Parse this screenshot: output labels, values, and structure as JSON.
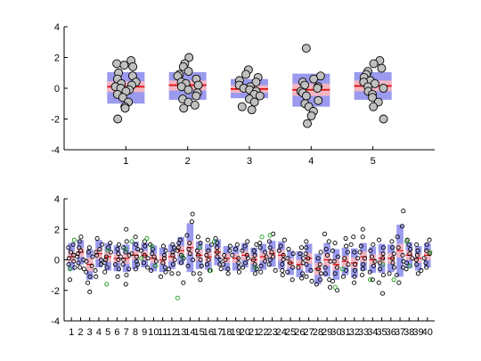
{
  "chart_data": [
    {
      "type": "scatter",
      "subtype": "notBoxPlot",
      "categories": [
        "1",
        "2",
        "3",
        "4",
        "5"
      ],
      "ylim": [
        -4,
        4
      ],
      "yticks": [
        "-4",
        "-2",
        "0",
        "2",
        "4"
      ],
      "grid": false,
      "groups": [
        {
          "x": "1",
          "mean": 0.1,
          "sem_low": -0.25,
          "sem_high": 0.45,
          "sd_low": -1.0,
          "sd_high": 1.05,
          "points": [
            1.8,
            1.6,
            1.5,
            1.4,
            1.0,
            0.8,
            0.6,
            0.4,
            0.3,
            0.2,
            0.1,
            0.0,
            -0.1,
            -0.2,
            -0.4,
            -0.6,
            -0.9,
            -1.2,
            -1.3,
            -2.0
          ]
        },
        {
          "x": "2",
          "mean": 0.2,
          "sem_low": -0.15,
          "sem_high": 0.5,
          "sd_low": -0.75,
          "sd_high": 1.05,
          "points": [
            2.0,
            1.6,
            1.4,
            1.1,
            0.9,
            0.8,
            0.6,
            0.4,
            0.3,
            0.2,
            0.1,
            -0.1,
            -0.3,
            -0.5,
            -0.7,
            -0.9,
            -1.1,
            -1.3
          ]
        },
        {
          "x": "3",
          "mean": -0.05,
          "sem_low": -0.3,
          "sem_high": 0.2,
          "sd_low": -0.65,
          "sd_high": 0.6,
          "points": [
            1.2,
            0.9,
            0.7,
            0.5,
            0.4,
            0.2,
            0.1,
            0.0,
            -0.1,
            -0.2,
            -0.4,
            -0.5,
            -0.7,
            -0.9,
            -1.2,
            -1.4
          ]
        },
        {
          "x": "4",
          "mean": -0.1,
          "sem_low": -0.5,
          "sem_high": 0.3,
          "sd_low": -1.2,
          "sd_high": 0.95,
          "points": [
            2.6,
            0.8,
            0.6,
            0.4,
            0.2,
            0.1,
            0.0,
            -0.2,
            -0.3,
            -0.5,
            -0.8,
            -1.0,
            -1.2,
            -1.5,
            -1.8,
            -2.3
          ]
        },
        {
          "x": "5",
          "mean": 0.15,
          "sem_low": -0.2,
          "sem_high": 0.5,
          "sd_low": -0.75,
          "sd_high": 1.05,
          "points": [
            1.8,
            1.6,
            1.3,
            1.1,
            0.9,
            0.7,
            0.5,
            0.4,
            0.3,
            0.1,
            0.0,
            -0.2,
            -0.4,
            -0.6,
            -0.9,
            -1.2,
            -2.0
          ]
        }
      ]
    },
    {
      "type": "scatter",
      "subtype": "notBoxPlot",
      "categories": [
        "1",
        "2",
        "3",
        "4",
        "5",
        "6",
        "7",
        "8",
        "9",
        "10",
        "11",
        "12",
        "13",
        "14",
        "15",
        "16",
        "17",
        "18",
        "19",
        "20",
        "21",
        "22",
        "23",
        "24",
        "25",
        "26",
        "27",
        "28",
        "29",
        "30",
        "31",
        "32",
        "33",
        "34",
        "35",
        "36",
        "37",
        "38",
        "39",
        "40"
      ],
      "ylim": [
        -4,
        4
      ],
      "yticks": [
        "-4",
        "-2",
        "0",
        "2",
        "4"
      ],
      "grid": false,
      "point_colors": {
        "normal": "#000000",
        "outlier": "#1a9a1a"
      },
      "groups": [
        {
          "x": "1",
          "mean": 0.2,
          "sem": 0.35,
          "sd": 0.9,
          "points": [
            1.0,
            0.8,
            0.5,
            0.3,
            0.1,
            -0.1,
            -0.3,
            -0.5,
            -1.3
          ],
          "outliers": [
            1.3,
            -0.6
          ]
        },
        {
          "x": "2",
          "mean": 0.5,
          "sem": 0.3,
          "sd": 0.8,
          "points": [
            1.5,
            1.2,
            0.8,
            0.6,
            0.4,
            0.2,
            0.0,
            -0.2,
            -0.5,
            -0.6
          ],
          "outliers": []
        },
        {
          "x": "3",
          "mean": -0.3,
          "sem": 0.45,
          "sd": 1.0,
          "points": [
            0.8,
            0.5,
            0.2,
            -0.1,
            -0.4,
            -0.8,
            -1.1,
            -1.5,
            -2.1
          ],
          "outliers": []
        },
        {
          "x": "4",
          "mean": 0.4,
          "sem": 0.35,
          "sd": 0.9,
          "points": [
            1.4,
            1.0,
            0.7,
            0.5,
            0.3,
            0.0,
            -0.3,
            -0.7,
            -1.1
          ],
          "outliers": []
        },
        {
          "x": "5",
          "mean": 0.2,
          "sem": 0.35,
          "sd": 0.9,
          "points": [
            1.1,
            0.8,
            0.5,
            0.2,
            0.0,
            -0.2,
            -0.5,
            -0.8
          ],
          "outliers": [
            0.6,
            -1.6
          ]
        },
        {
          "x": "6",
          "mean": 0.1,
          "sem": 0.3,
          "sd": 0.85,
          "points": [
            1.0,
            0.7,
            0.4,
            0.2,
            0.0,
            -0.3,
            -0.6,
            -1.1
          ],
          "outliers": []
        },
        {
          "x": "7",
          "mean": 0.1,
          "sem": 0.35,
          "sd": 0.9,
          "points": [
            2.0,
            1.2,
            0.8,
            0.5,
            0.3,
            0.0,
            -0.3,
            -0.6,
            -1.0,
            -1.6
          ],
          "outliers": [
            0.7
          ]
        },
        {
          "x": "8",
          "mean": 0.3,
          "sem": 0.3,
          "sd": 0.9,
          "points": [
            1.5,
            1.0,
            0.7,
            0.4,
            0.2,
            -0.1,
            -0.3,
            -0.6
          ],
          "outliers": [
            1.2
          ]
        },
        {
          "x": "9",
          "mean": 0.3,
          "sem": 0.3,
          "sd": 0.8,
          "points": [
            1.2,
            0.9,
            0.6,
            0.3,
            0.1,
            -0.2,
            -0.5
          ],
          "outliers": [
            1.4,
            0.1
          ]
        },
        {
          "x": "10",
          "mean": 0.1,
          "sem": 0.3,
          "sd": 0.85,
          "points": [
            1.0,
            0.7,
            0.4,
            0.2,
            -0.1,
            -0.4,
            -0.7
          ],
          "outliers": [
            0.9,
            -0.4
          ]
        },
        {
          "x": "11",
          "mean": 0.0,
          "sem": 0.3,
          "sd": 0.8,
          "points": [
            0.9,
            0.6,
            0.3,
            0.1,
            -0.2,
            -0.5,
            -0.8,
            -1.1
          ],
          "outliers": []
        },
        {
          "x": "12",
          "mean": 0.2,
          "sem": 0.3,
          "sd": 0.8,
          "points": [
            1.0,
            0.8,
            0.5,
            0.3,
            0.0,
            -0.3,
            -0.6,
            -0.9
          ],
          "outliers": []
        },
        {
          "x": "13",
          "mean": 0.6,
          "sem": 0.3,
          "sd": 0.9,
          "points": [
            1.3,
            1.1,
            0.8,
            0.6,
            0.3,
            0.1,
            -0.2,
            -0.9,
            -1.5
          ],
          "outliers": [
            0.2,
            -2.5
          ]
        },
        {
          "x": "14",
          "mean": 0.8,
          "sem": 0.45,
          "sd": 1.6,
          "points": [
            3.0,
            2.5,
            1.6,
            1.1,
            0.7,
            0.4,
            0.0,
            -0.4,
            -0.9
          ],
          "outliers": []
        },
        {
          "x": "15",
          "mean": 0.3,
          "sem": 0.35,
          "sd": 0.9,
          "points": [
            1.5,
            1.1,
            0.6,
            0.3,
            0.0,
            -0.4,
            -0.9,
            -1.3
          ],
          "outliers": [
            0.8
          ]
        },
        {
          "x": "16",
          "mean": 0.2,
          "sem": 0.35,
          "sd": 0.85,
          "points": [
            1.3,
            1.0,
            0.6,
            0.3,
            0.0,
            -0.3,
            -0.7
          ],
          "outliers": [
            -0.7
          ]
        },
        {
          "x": "17",
          "mean": 0.5,
          "sem": 0.3,
          "sd": 0.85,
          "points": [
            1.4,
            1.1,
            0.8,
            0.5,
            0.2,
            0.0,
            -0.3,
            -0.6
          ],
          "outliers": [
            1.2
          ]
        },
        {
          "x": "18",
          "mean": 0.1,
          "sem": 0.3,
          "sd": 0.8,
          "points": [
            0.9,
            0.6,
            0.3,
            0.0,
            -0.3,
            -0.6,
            -0.9
          ],
          "outliers": []
        },
        {
          "x": "19",
          "mean": 0.1,
          "sem": 0.3,
          "sd": 0.8,
          "points": [
            1.0,
            0.7,
            0.3,
            0.1,
            -0.2,
            -0.5,
            -0.8
          ],
          "outliers": []
        },
        {
          "x": "20",
          "mean": 0.3,
          "sem": 0.3,
          "sd": 0.8,
          "points": [
            1.2,
            0.9,
            0.6,
            0.3,
            0.1,
            -0.2,
            -0.5
          ],
          "outliers": []
        },
        {
          "x": "21",
          "mean": 0.0,
          "sem": 0.3,
          "sd": 0.8,
          "points": [
            1.0,
            0.6,
            0.3,
            0.0,
            -0.3,
            -0.6,
            -0.9
          ],
          "outliers": [
            -0.5
          ]
        },
        {
          "x": "22",
          "mean": 0.2,
          "sem": 0.3,
          "sd": 0.85,
          "points": [
            1.1,
            0.8,
            0.5,
            0.2,
            -0.1,
            -0.4,
            -0.8
          ],
          "outliers": [
            1.5
          ]
        },
        {
          "x": "23",
          "mean": 0.4,
          "sem": 0.3,
          "sd": 0.85,
          "points": [
            1.7,
            1.2,
            0.8,
            0.5,
            0.2,
            0.0,
            -0.3,
            -0.7
          ],
          "outliers": [
            1.6
          ]
        },
        {
          "x": "24",
          "mean": 0.3,
          "sem": 0.35,
          "sd": 0.9,
          "points": [
            1.3,
            0.9,
            0.6,
            0.3,
            0.0,
            -0.3,
            -0.7,
            -1.0
          ],
          "outliers": []
        },
        {
          "x": "25",
          "mean": -0.2,
          "sem": 0.3,
          "sd": 0.8,
          "points": [
            0.7,
            0.4,
            0.1,
            -0.2,
            -0.5,
            -0.8,
            -1.3
          ],
          "outliers": []
        },
        {
          "x": "26",
          "mean": -0.3,
          "sem": 0.3,
          "sd": 0.85,
          "points": [
            0.8,
            0.4,
            0.1,
            -0.2,
            -0.5,
            -0.9,
            -1.2
          ],
          "outliers": []
        },
        {
          "x": "27",
          "mean": 0.1,
          "sem": 0.35,
          "sd": 0.95,
          "points": [
            1.2,
            0.8,
            0.4,
            0.1,
            -0.3,
            -0.7,
            -1.1,
            -1.4
          ],
          "outliers": []
        },
        {
          "x": "28",
          "mean": -0.6,
          "sem": 0.4,
          "sd": 1.0,
          "points": [
            0.5,
            0.1,
            -0.3,
            -0.6,
            -0.9,
            -1.3,
            -1.6
          ],
          "outliers": []
        },
        {
          "x": "29",
          "mean": 0.0,
          "sem": 0.4,
          "sd": 1.1,
          "points": [
            1.7,
            1.2,
            0.7,
            0.3,
            -0.1,
            -0.5,
            -0.9,
            -1.3,
            -1.8
          ],
          "outliers": []
        },
        {
          "x": "30",
          "mean": -0.3,
          "sem": 0.35,
          "sd": 1.0,
          "points": [
            1.1,
            0.6,
            0.2,
            -0.1,
            -0.5,
            -0.9,
            -1.4,
            -2.0
          ],
          "outliers": [
            -1.8
          ]
        },
        {
          "x": "31",
          "mean": -0.1,
          "sem": 0.35,
          "sd": 0.9,
          "points": [
            1.4,
            0.9,
            0.5,
            0.1,
            -0.3,
            -0.7,
            -1.1
          ],
          "outliers": [
            -0.6
          ]
        },
        {
          "x": "32",
          "mean": -0.2,
          "sem": 0.35,
          "sd": 0.95,
          "points": [
            1.5,
            1.0,
            0.5,
            0.1,
            -0.3,
            -0.7,
            -1.1,
            -1.5
          ],
          "outliers": []
        },
        {
          "x": "33",
          "mean": 0.2,
          "sem": 0.35,
          "sd": 0.9,
          "points": [
            2.0,
            1.5,
            0.9,
            0.5,
            0.1,
            -0.3,
            -0.6,
            -1.0
          ],
          "outliers": []
        },
        {
          "x": "34",
          "mean": 0.0,
          "sem": 0.35,
          "sd": 0.85,
          "points": [
            1.0,
            0.6,
            0.2,
            -0.1,
            -0.4,
            -0.8,
            -1.3
          ],
          "outliers": [
            -1.3
          ]
        },
        {
          "x": "35",
          "mean": 0.1,
          "sem": 0.35,
          "sd": 0.95,
          "points": [
            1.3,
            0.8,
            0.4,
            0.1,
            -0.2,
            -0.6,
            -1.0,
            -1.5,
            -2.2
          ],
          "outliers": [
            -0.3
          ]
        },
        {
          "x": "36",
          "mean": 0.1,
          "sem": 0.35,
          "sd": 0.9,
          "points": [
            1.2,
            0.8,
            0.4,
            0.1,
            -0.2,
            -0.5,
            -0.9
          ],
          "outliers": [
            -1.3
          ]
        },
        {
          "x": "37",
          "mean": 0.6,
          "sem": 0.45,
          "sd": 1.7,
          "points": [
            3.2,
            2.2,
            1.5,
            0.8,
            0.3,
            -0.1,
            -0.5,
            -1.0,
            -1.5
          ],
          "outliers": []
        },
        {
          "x": "38",
          "mean": 0.3,
          "sem": 0.3,
          "sd": 0.85,
          "points": [
            1.3,
            1.0,
            0.7,
            0.4,
            0.1,
            -0.2,
            -0.6
          ],
          "outliers": [
            1.2,
            -0.4
          ]
        },
        {
          "x": "39",
          "mean": 0.1,
          "sem": 0.3,
          "sd": 0.8,
          "points": [
            1.0,
            0.6,
            0.3,
            0.0,
            -0.3,
            -0.7,
            -0.9
          ],
          "outliers": []
        },
        {
          "x": "40",
          "mean": 0.3,
          "sem": 0.3,
          "sd": 0.8,
          "points": [
            1.3,
            1.0,
            0.6,
            0.4,
            0.1,
            -0.2,
            -0.5
          ],
          "outliers": [
            0.5
          ]
        }
      ]
    }
  ],
  "colors": {
    "sd_box": "#9a9aee",
    "sem_box": "#f2b6c2",
    "mean_line": "#e01010",
    "point_fill": "#c0c0c0",
    "point_stroke": "#000000",
    "axis": "#000000"
  }
}
